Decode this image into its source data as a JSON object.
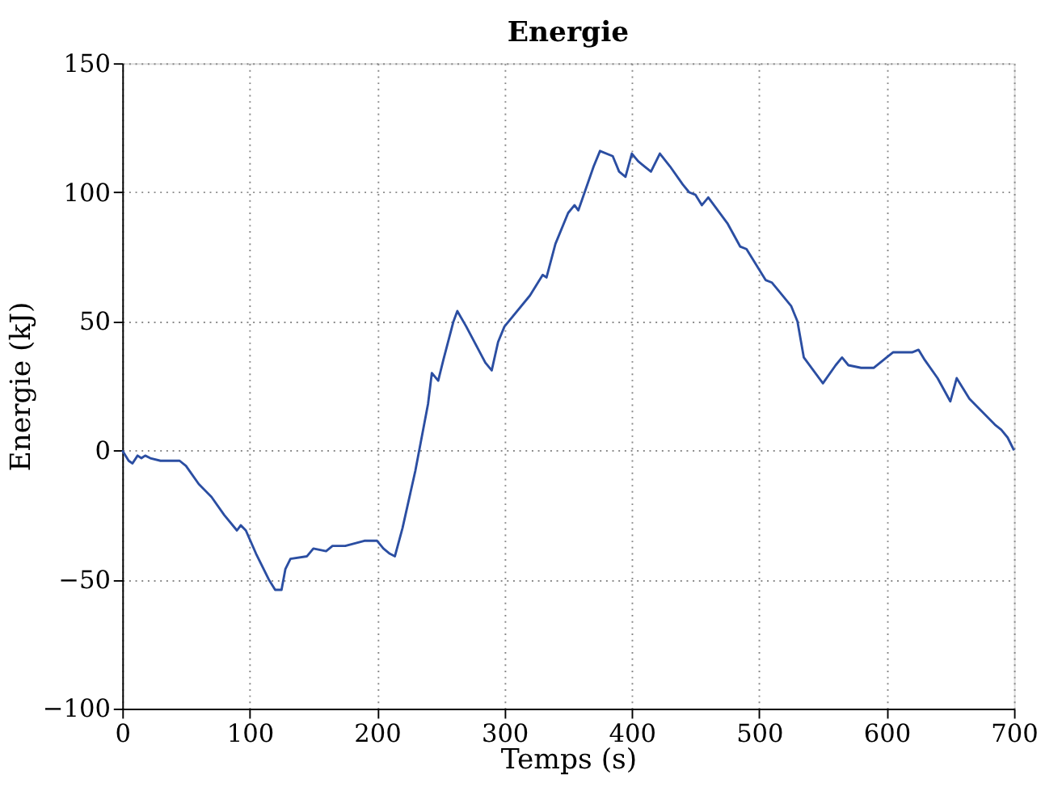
{
  "chart_data": {
    "type": "line",
    "title": "Energie",
    "xlabel": "Temps (s)",
    "ylabel": "Energie (kJ)",
    "x": [
      0,
      5,
      8,
      12,
      15,
      18,
      22,
      30,
      45,
      50,
      60,
      70,
      80,
      90,
      93,
      97,
      105,
      115,
      120,
      125,
      128,
      132,
      145,
      150,
      160,
      165,
      175,
      190,
      200,
      205,
      210,
      214,
      220,
      230,
      240,
      243,
      248,
      252,
      260,
      263,
      270,
      285,
      290,
      295,
      300,
      320,
      330,
      333,
      340,
      350,
      355,
      358,
      370,
      375,
      385,
      390,
      395,
      400,
      405,
      410,
      415,
      422,
      430,
      440,
      445,
      450,
      455,
      460,
      475,
      485,
      490,
      495,
      505,
      510,
      515,
      525,
      530,
      535,
      550,
      560,
      565,
      570,
      580,
      590,
      600,
      605,
      620,
      625,
      630,
      640,
      650,
      655,
      665,
      675,
      685,
      690,
      695,
      700
    ],
    "series": [
      {
        "color": "#2b4ea2",
        "values": [
          0,
          -4,
          -5,
          -2,
          -3,
          -2,
          -3,
          -4,
          -4,
          -6,
          -13,
          -18,
          -25,
          -31,
          -29,
          -31,
          -40,
          -50,
          -54,
          -54,
          -46,
          -42,
          -41,
          -38,
          -39,
          -37,
          -37,
          -35,
          -35,
          -38,
          -40,
          -41,
          -30,
          -8,
          18,
          30,
          27,
          35,
          50,
          54,
          48,
          34,
          31,
          42,
          48,
          60,
          68,
          67,
          80,
          92,
          95,
          93,
          110,
          116,
          114,
          108,
          106,
          115,
          112,
          110,
          108,
          115,
          110,
          103,
          100,
          99,
          95,
          98,
          88,
          79,
          78,
          74,
          66,
          65,
          62,
          56,
          50,
          36,
          26,
          33,
          36,
          33,
          32,
          32,
          36,
          38,
          38,
          39,
          35,
          28,
          19,
          28,
          20,
          15,
          10,
          8,
          5,
          0
        ]
      }
    ],
    "xlim": [
      0,
      700
    ],
    "xticks": [
      0,
      100,
      200,
      300,
      400,
      500,
      600,
      700
    ],
    "ylim": [
      -100,
      150
    ],
    "yticks": [
      -100,
      -50,
      0,
      50,
      100,
      150
    ],
    "grid": true,
    "legend": false,
    "marker": "none",
    "line_style": "solid"
  }
}
